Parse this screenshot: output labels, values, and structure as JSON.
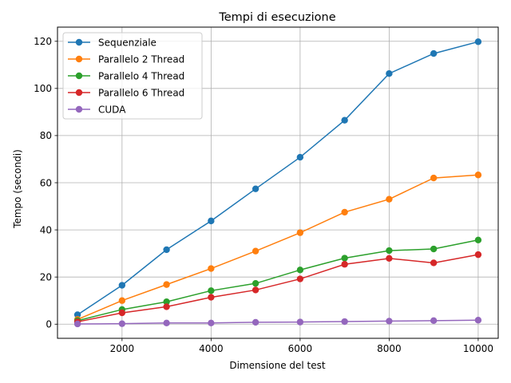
{
  "chart_data": {
    "type": "line",
    "title": "Tempi di esecuzione",
    "xlabel": "Dimensione del test",
    "ylabel": "Tempo (secondi)",
    "x": [
      1000,
      2000,
      3000,
      4000,
      5000,
      6000,
      7000,
      8000,
      9000,
      10000
    ],
    "xlim": [
      550,
      10450
    ],
    "ylim": [
      -6,
      126
    ],
    "xticks": [
      2000,
      4000,
      6000,
      8000,
      10000
    ],
    "yticks": [
      0,
      20,
      40,
      60,
      80,
      100,
      120
    ],
    "grid": true,
    "legend_position": "upper-left",
    "series": [
      {
        "name": "Sequenziale",
        "color": "#1f77b4",
        "values": [
          4.0,
          16.5,
          31.6,
          43.8,
          57.4,
          70.8,
          86.5,
          106.3,
          114.8,
          119.8
        ]
      },
      {
        "name": "Parallelo 2 Thread",
        "color": "#ff7f0e",
        "values": [
          2.0,
          10.0,
          16.8,
          23.6,
          31.0,
          38.8,
          47.5,
          53.0,
          62.0,
          63.3
        ]
      },
      {
        "name": "Parallelo 4 Thread",
        "color": "#2ca02c",
        "values": [
          1.5,
          6.2,
          9.5,
          14.2,
          17.3,
          23.0,
          28.0,
          31.2,
          31.9,
          35.7
        ]
      },
      {
        "name": "Parallelo 6 Thread",
        "color": "#d62728",
        "values": [
          1.0,
          4.8,
          7.4,
          11.4,
          14.5,
          19.2,
          25.4,
          27.9,
          26.0,
          29.5
        ]
      },
      {
        "name": "CUDA",
        "color": "#9467bd",
        "values": [
          0.1,
          0.2,
          0.5,
          0.5,
          0.8,
          0.9,
          1.1,
          1.3,
          1.5,
          1.7
        ]
      }
    ]
  }
}
